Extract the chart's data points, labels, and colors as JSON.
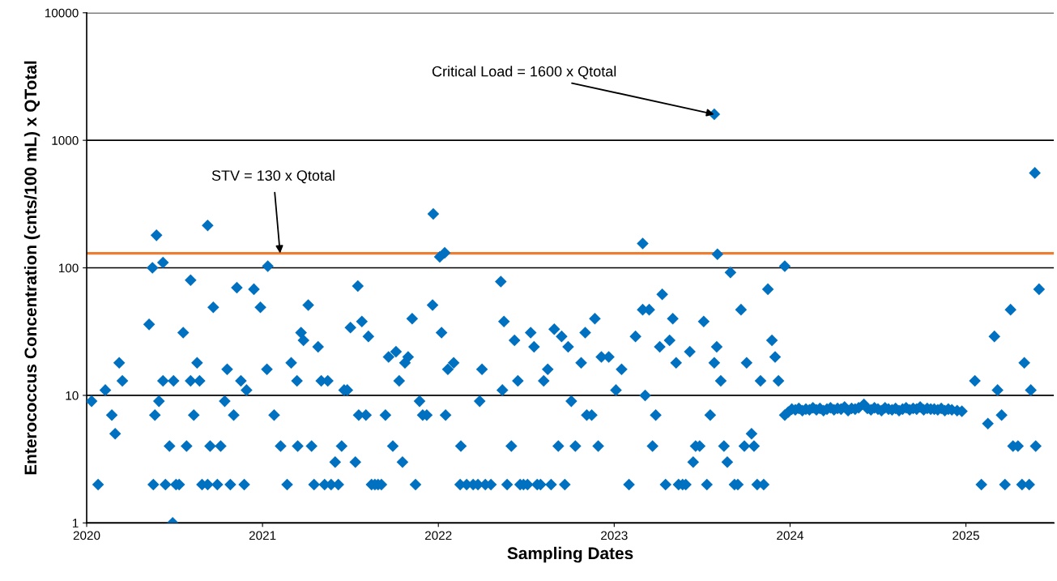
{
  "chart_data": {
    "type": "scatter",
    "xlabel": "Sampling Dates",
    "ylabel": "Enterococcus Concentration (cnts/100 mL) x QTotal",
    "log": "y",
    "grid": "y",
    "marker": "diamond",
    "xlim": [
      2020,
      2025.5
    ],
    "xticks": [
      2020,
      2021,
      2022,
      2023,
      2024,
      2025
    ],
    "ylim": [
      1,
      10000
    ],
    "yticks": [
      1,
      10,
      100,
      1000,
      10000
    ],
    "ref_lines": [
      {
        "axis": "y",
        "value": 130,
        "color": "#ed7d31"
      }
    ],
    "annotations": [
      {
        "text": "STV = 130 x Qtotal",
        "x": 2021.1,
        "y": 130
      },
      {
        "text": "Critical Load = 1600 x Qtotal",
        "x": 2023.569,
        "y": 1600
      }
    ],
    "series": [
      {
        "color": "#0070c0",
        "x": [
          2020.028,
          2020.065,
          2020.106,
          2020.143,
          2020.162,
          2020.185,
          2020.203,
          2020.355,
          2020.374,
          2020.397,
          2020.388,
          2020.411,
          2020.434,
          2020.434,
          2020.448,
          2020.471,
          2020.379,
          2020.494,
          2020.508,
          2020.526,
          2020.489,
          2020.549,
          2020.568,
          2020.591,
          2020.591,
          2020.609,
          2020.628,
          2020.642,
          2020.656,
          2020.688,
          2020.702,
          2020.72,
          2020.688,
          2020.743,
          2020.762,
          2020.785,
          2020.799,
          2020.817,
          2020.836,
          2020.854,
          2020.877,
          2020.896,
          2020.909,
          2020.951,
          2020.988,
          2021.03,
          2021.025,
          2021.066,
          2021.103,
          2021.14,
          2021.163,
          2021.196,
          2021.2,
          2021.219,
          2021.233,
          2021.26,
          2021.279,
          2021.293,
          2021.316,
          2021.334,
          2021.353,
          2021.371,
          2021.39,
          2021.413,
          2021.431,
          2021.45,
          2021.464,
          2021.482,
          2021.5,
          2021.528,
          2021.542,
          2021.547,
          2021.565,
          2021.588,
          2021.602,
          2021.62,
          2021.639,
          2021.657,
          2021.676,
          2021.699,
          2021.717,
          2021.741,
          2021.759,
          2021.777,
          2021.796,
          2021.81,
          2021.828,
          2021.851,
          2021.87,
          2021.893,
          2021.911,
          2021.934,
          2021.967,
          2021.971,
          2022.008,
          2022.018,
          2022.036,
          2022.041,
          2022.054,
          2022.087,
          2022.124,
          2022.128,
          2022.161,
          2022.198,
          2022.225,
          2022.235,
          2022.248,
          2022.267,
          2022.299,
          2022.355,
          2022.364,
          2022.373,
          2022.391,
          2022.415,
          2022.433,
          2022.452,
          2022.465,
          2022.484,
          2022.507,
          2022.525,
          2022.544,
          2022.562,
          2022.581,
          2022.599,
          2022.622,
          2022.641,
          2022.659,
          2022.682,
          2022.701,
          2022.719,
          2022.738,
          2022.756,
          2022.779,
          2022.812,
          2022.835,
          2022.844,
          2022.872,
          2022.89,
          2022.909,
          2022.927,
          2022.969,
          2023.01,
          2023.042,
          2023.084,
          2023.121,
          2023.162,
          2023.162,
          2023.176,
          2023.199,
          2023.218,
          2023.236,
          2023.259,
          2023.273,
          2023.292,
          2023.315,
          2023.333,
          2023.352,
          2023.366,
          2023.389,
          2023.407,
          2023.43,
          2023.449,
          2023.463,
          2023.486,
          2023.509,
          2023.527,
          2023.546,
          2023.569,
          2023.569,
          2023.583,
          2023.587,
          2023.606,
          2023.624,
          2023.643,
          2023.661,
          2023.684,
          2023.703,
          2023.721,
          2023.74,
          2023.753,
          2023.781,
          2023.795,
          2023.813,
          2023.832,
          2023.85,
          2023.874,
          2023.897,
          2023.915,
          2023.934,
          2023.97,
          2023.97,
          2023.99,
          2024.01,
          2024.03,
          2024.05,
          2024.07,
          2024.09,
          2024.11,
          2024.13,
          2024.15,
          2024.17,
          2024.19,
          2024.21,
          2024.23,
          2024.25,
          2024.27,
          2024.29,
          2024.31,
          2024.33,
          2024.35,
          2024.37,
          2024.39,
          2024.42,
          2024.44,
          2024.46,
          2024.48,
          2024.5,
          2024.52,
          2024.54,
          2024.56,
          2024.58,
          2024.6,
          2024.62,
          2024.64,
          2024.66,
          2024.68,
          2024.7,
          2024.72,
          2024.74,
          2024.76,
          2024.78,
          2024.8,
          2024.82,
          2024.84,
          2024.86,
          2024.88,
          2024.9,
          2024.92,
          2024.95,
          2024.977,
          2025.051,
          2025.088,
          2025.125,
          2025.162,
          2025.18,
          2025.203,
          2025.222,
          2025.254,
          2025.268,
          2025.296,
          2025.319,
          2025.332,
          2025.36,
          2025.369,
          2025.392,
          2025.397,
          2025.416
        ],
        "values": [
          9,
          2,
          11,
          7,
          5,
          18,
          13,
          36,
          100,
          180,
          7,
          9,
          110,
          13,
          2,
          4,
          2,
          13,
          2,
          2,
          1,
          31,
          4,
          80,
          13,
          7,
          18,
          13,
          2,
          215,
          4,
          49,
          2,
          2,
          4,
          9,
          16,
          2,
          7,
          70,
          13,
          2,
          11,
          68,
          49,
          103,
          16,
          7,
          4,
          2,
          18,
          13,
          4,
          31,
          27,
          51,
          4,
          2,
          24,
          13,
          2,
          13,
          2,
          3,
          2,
          4,
          11,
          11,
          34,
          3,
          72,
          7,
          38,
          7,
          29,
          2,
          2,
          2,
          2,
          7,
          20,
          4,
          22,
          13,
          3,
          18,
          20,
          40,
          2,
          9,
          7,
          7,
          51,
          265,
          122,
          31,
          131,
          7,
          16,
          18,
          2,
          4,
          2,
          2,
          2,
          9,
          16,
          2,
          2,
          78,
          11,
          38,
          2,
          4,
          27,
          13,
          2,
          2,
          2,
          31,
          24,
          2,
          2,
          13,
          16,
          2,
          33,
          4,
          29,
          2,
          24,
          9,
          4,
          18,
          31,
          7,
          7,
          40,
          4,
          20,
          20,
          11,
          16,
          2,
          29,
          155,
          47,
          10,
          47,
          4,
          7,
          24,
          62,
          2,
          27,
          40,
          18,
          2,
          2,
          2,
          22,
          3,
          4,
          4,
          38,
          2,
          7,
          1600,
          18,
          24,
          128,
          13,
          4,
          3,
          92,
          2,
          2,
          47,
          4,
          18,
          5,
          4,
          2,
          13,
          2,
          68,
          27,
          20,
          13,
          103,
          7,
          7.4,
          7.8,
          7.7,
          7.9,
          7.6,
          7.8,
          7.7,
          8.0,
          7.7,
          7.9,
          7.6,
          7.8,
          8.0,
          7.7,
          7.9,
          7.8,
          8.1,
          7.6,
          7.9,
          7.8,
          8.0,
          8.5,
          7.9,
          7.7,
          8.0,
          7.8,
          7.6,
          8.0,
          7.8,
          7.7,
          7.9,
          7.6,
          7.8,
          8.0,
          7.7,
          7.9,
          7.8,
          8.1,
          7.7,
          7.9,
          7.8,
          7.8,
          7.7,
          7.9,
          7.6,
          7.8,
          7.7,
          7.6,
          7.5,
          13,
          2,
          6,
          29,
          11,
          7,
          2,
          47,
          4,
          4,
          2,
          18,
          2,
          11,
          555,
          4,
          68
        ]
      }
    ]
  }
}
